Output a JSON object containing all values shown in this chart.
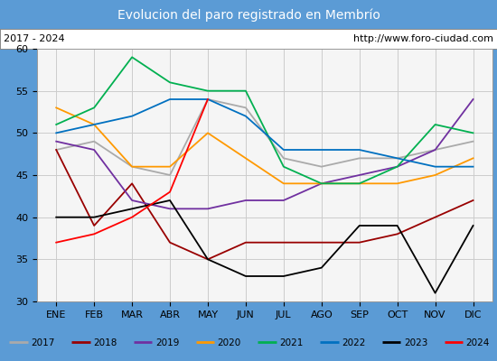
{
  "title": "Evolucion del paro registrado en Membrío",
  "subtitle_left": "2017 - 2024",
  "subtitle_right": "http://www.foro-ciudad.com",
  "title_bg_color": "#5b9bd5",
  "title_text_color": "white",
  "months": [
    "ENE",
    "FEB",
    "MAR",
    "ABR",
    "MAY",
    "JUN",
    "JUL",
    "AGO",
    "SEP",
    "OCT",
    "NOV",
    "DIC"
  ],
  "ylim": [
    30,
    60
  ],
  "yticks": [
    30,
    35,
    40,
    45,
    50,
    55,
    60
  ],
  "series": {
    "2017": {
      "color": "#aaaaaa",
      "values": [
        48,
        49,
        46,
        45,
        54,
        53,
        47,
        46,
        47,
        47,
        48,
        49
      ]
    },
    "2018": {
      "color": "#990000",
      "values": [
        48,
        39,
        44,
        37,
        35,
        37,
        37,
        37,
        37,
        38,
        40,
        42
      ]
    },
    "2019": {
      "color": "#7030a0",
      "values": [
        49,
        48,
        42,
        41,
        41,
        42,
        42,
        44,
        45,
        46,
        48,
        54
      ]
    },
    "2020": {
      "color": "#ff9900",
      "values": [
        53,
        51,
        46,
        46,
        50,
        47,
        44,
        44,
        44,
        44,
        45,
        47
      ]
    },
    "2021": {
      "color": "#00b050",
      "values": [
        51,
        53,
        59,
        56,
        55,
        55,
        46,
        44,
        44,
        46,
        51,
        50
      ]
    },
    "2022": {
      "color": "#0070c0",
      "values": [
        50,
        51,
        52,
        54,
        54,
        52,
        48,
        48,
        48,
        47,
        46,
        46
      ]
    },
    "2023": {
      "color": "#000000",
      "values": [
        40,
        40,
        41,
        42,
        35,
        33,
        33,
        34,
        39,
        39,
        31,
        39
      ]
    },
    "2024": {
      "color": "#ff0000",
      "values": [
        37,
        38,
        40,
        43,
        54,
        null,
        null,
        null,
        null,
        null,
        null,
        null
      ]
    }
  },
  "legend_order": [
    "2017",
    "2018",
    "2019",
    "2020",
    "2021",
    "2022",
    "2023",
    "2024"
  ],
  "grid_color": "#cccccc",
  "plot_bg_color": "#f5f5f5",
  "outer_bg_color": "#5b9bd5"
}
